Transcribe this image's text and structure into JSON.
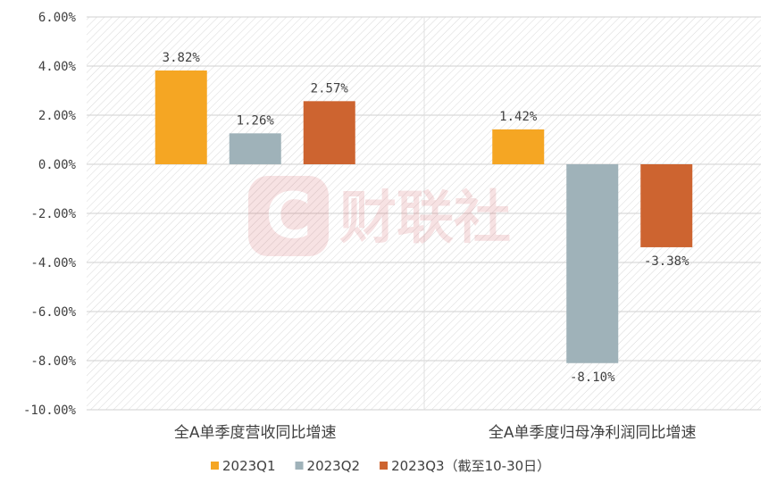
{
  "chart_data": {
    "type": "bar",
    "categories": [
      "全A单季度营收同比增速",
      "全A单季度归母净利润同比增速"
    ],
    "series": [
      {
        "name": "2023Q1",
        "color": "#f5a623",
        "values": [
          3.82,
          1.42
        ],
        "labels": [
          "3.82%",
          "1.42%"
        ]
      },
      {
        "name": "2023Q2",
        "color": "#9fb2b9",
        "values": [
          1.26,
          -8.1
        ],
        "labels": [
          "1.26%",
          "-8.10%"
        ]
      },
      {
        "name": "2023Q3（截至10-30日）",
        "color": "#cd6430",
        "values": [
          2.57,
          -3.38
        ],
        "labels": [
          "2.57%",
          "-3.38%"
        ]
      }
    ],
    "ylim": [
      -10,
      6
    ],
    "yticks": [
      "6.00%",
      "4.00%",
      "2.00%",
      "0.00%",
      "-2.00%",
      "-4.00%",
      "-6.00%",
      "-8.00%",
      "-10.00%"
    ],
    "ytick_values": [
      6,
      4,
      2,
      0,
      -2,
      -4,
      -6,
      -8,
      -10
    ],
    "grid": true,
    "legend_position": "bottom"
  },
  "watermark": {
    "text": "财联社",
    "color": "#c9262e"
  }
}
